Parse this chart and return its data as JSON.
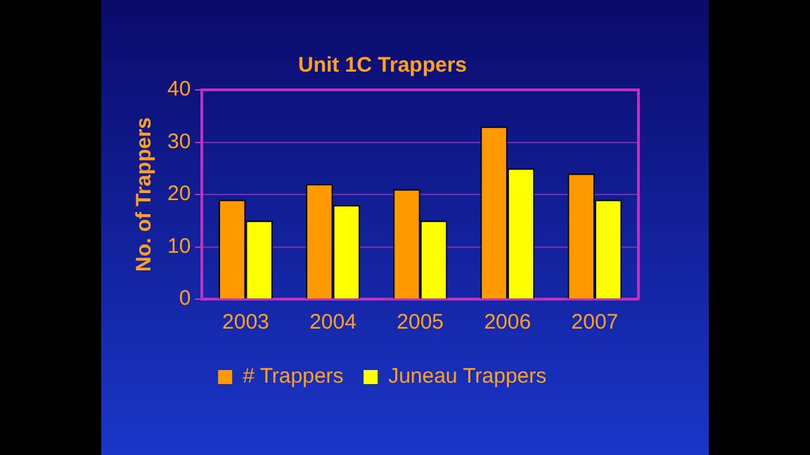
{
  "chart_data": {
    "type": "bar",
    "title": "Unit 1C Trappers",
    "ylabel": "No. of Trappers",
    "categories": [
      "2003",
      "2004",
      "2005",
      "2006",
      "2007"
    ],
    "series": [
      {
        "name": "# Trappers",
        "color": "#ff9900",
        "values": [
          19,
          22,
          21,
          33,
          24
        ]
      },
      {
        "name": "Juneau Trappers",
        "color": "#ffff00",
        "values": [
          15,
          18,
          15,
          25,
          19
        ]
      }
    ],
    "ylim": [
      0,
      40
    ],
    "yticks": [
      0,
      10,
      20,
      30,
      40
    ],
    "grid": "y",
    "legend": "bottom"
  }
}
